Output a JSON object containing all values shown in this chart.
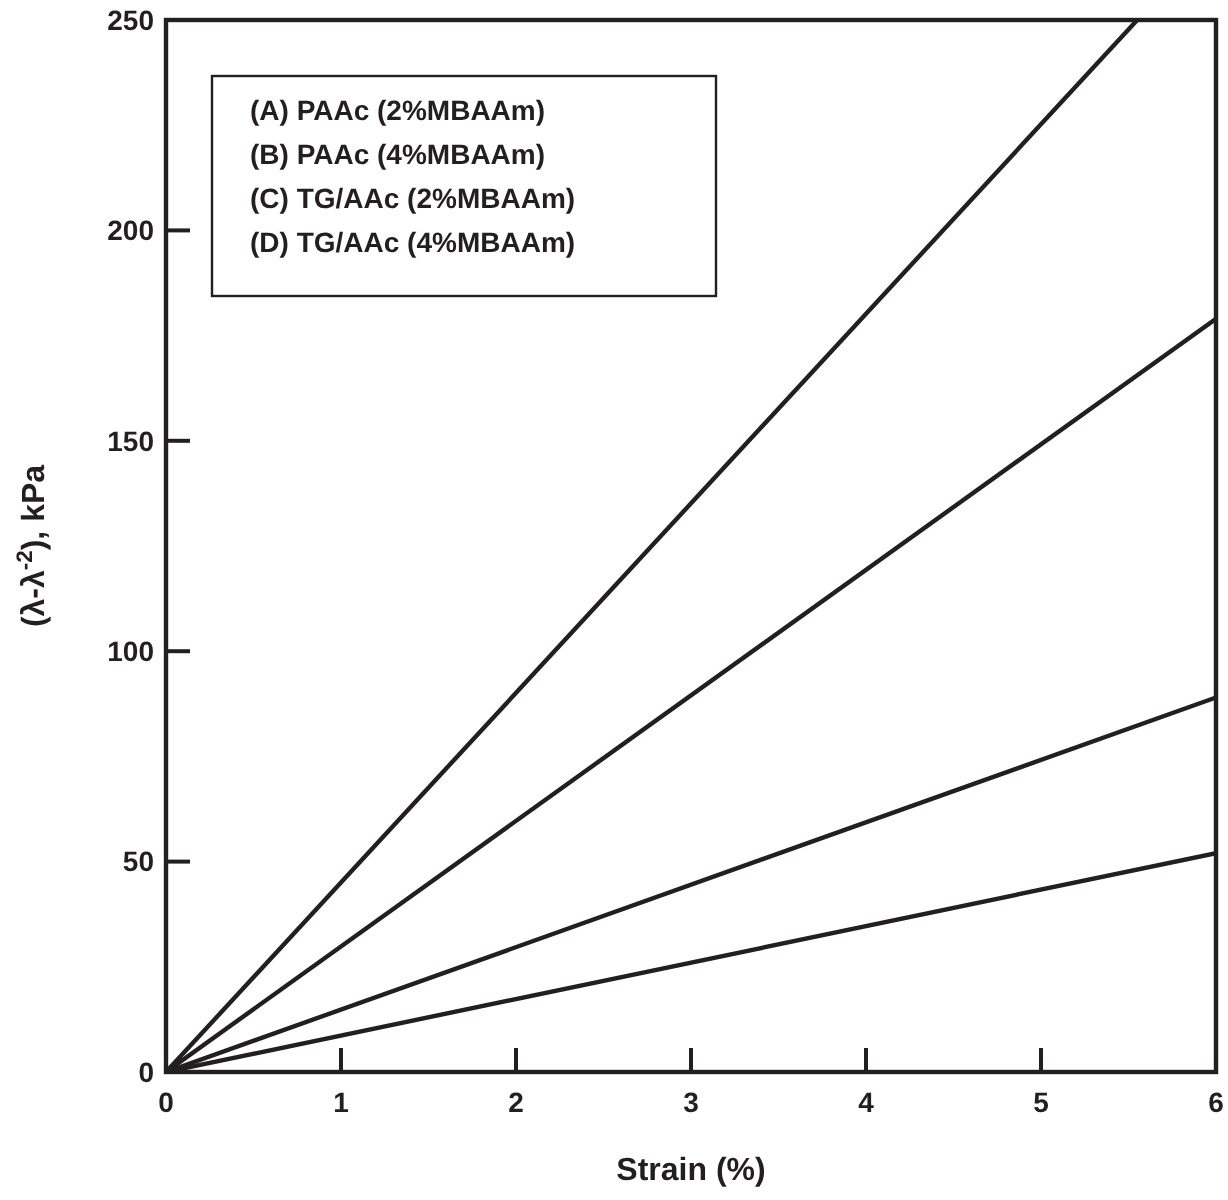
{
  "chart_data": {
    "type": "line",
    "xlabel": "Strain (%)",
    "ylabel": "(λ-λ$^{-2}$), kPa",
    "xlim": [
      0,
      6
    ],
    "ylim": [
      0,
      250
    ],
    "xticks": [
      0,
      1,
      2,
      3,
      4,
      5,
      6
    ],
    "yticks": [
      0,
      50,
      100,
      150,
      200,
      250
    ],
    "grid": false,
    "marker": "none",
    "line_style": "solid",
    "annotations": [
      "(A) PAAc (2%MBAAm)",
      "(B) PAAc (4%MBAAm)",
      "(C) TG/AAc (2%MBAAm)",
      "(D) TG/AAc (4%MBAAm)"
    ],
    "series": [
      {
        "color": "#231f20",
        "x": [
          0,
          5.55
        ],
        "values": [
          0,
          250
        ]
      },
      {
        "color": "#231f20",
        "x": [
          0,
          6
        ],
        "values": [
          0,
          179
        ]
      },
      {
        "color": "#231f20",
        "x": [
          0,
          6
        ],
        "values": [
          0,
          89
        ]
      },
      {
        "color": "#231f20",
        "x": [
          0,
          6
        ],
        "values": [
          0,
          52
        ]
      }
    ]
  }
}
